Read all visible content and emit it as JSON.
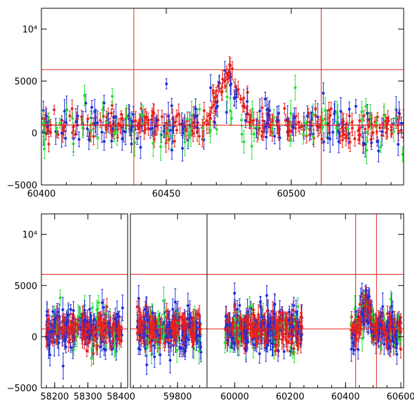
{
  "colors": {
    "red": "#e8201c",
    "blue": "#1f2fd8",
    "green": "#22e030",
    "frame": "#000000"
  },
  "chart_data": [
    {
      "type": "scatter",
      "panel": "top",
      "xlim": [
        60400,
        60545
      ],
      "ylim": [
        -5000,
        12000
      ],
      "x_ticks": [
        60400,
        60450,
        60500
      ],
      "y_ticks": [
        {
          "value": -5000,
          "label": "−5000"
        },
        {
          "value": 0,
          "label": "0"
        },
        {
          "value": 5000,
          "label": "5000"
        },
        {
          "value": 10000,
          "label": "10⁴"
        }
      ],
      "hlines": [
        6100,
        750
      ],
      "vlines": [
        60437,
        60512
      ],
      "model_curve": {
        "center": 60475,
        "peak": 6000,
        "baseline": 750,
        "width": 10
      },
      "series": [
        {
          "color": "red",
          "count": 320,
          "noise": 1100,
          "follows_model": true,
          "error": 650
        },
        {
          "color": "blue",
          "count": 150,
          "noise": 1900,
          "follows_model": true,
          "error": 900
        },
        {
          "color": "green",
          "count": 80,
          "noise": 2200,
          "follows_model": false,
          "error": 900
        }
      ]
    },
    {
      "type": "scatter",
      "panel": "bottom",
      "ylim": [
        -5000,
        12000
      ],
      "segments": [
        {
          "xlim": [
            58160,
            58420
          ],
          "x_ticks": [
            58200,
            58300,
            58400
          ],
          "data_range": [
            58175,
            58405
          ]
        },
        {
          "xlim": [
            59640,
            59900
          ],
          "x_ticks": [
            59800
          ],
          "data_range": [
            59660,
            59880
          ]
        },
        {
          "xlim": [
            59900,
            60610
          ],
          "x_ticks": [
            60000,
            60200,
            60400,
            60600
          ],
          "data_ranges": [
            [
              59965,
              60245
            ],
            [
              60420,
              60600
            ]
          ]
        }
      ],
      "y_ticks": [
        {
          "value": -5000,
          "label": "−5000"
        },
        {
          "value": 0,
          "label": "0"
        },
        {
          "value": 5000,
          "label": "5000"
        },
        {
          "value": 10000,
          "label": "10⁴"
        }
      ],
      "hlines": [
        6100,
        750
      ],
      "vlines": [
        60437,
        60512
      ],
      "series": [
        {
          "color": "red",
          "noise": 1300,
          "error": 700
        },
        {
          "color": "blue",
          "noise": 2000,
          "error": 900
        },
        {
          "color": "green",
          "noise": 2300,
          "error": 900
        }
      ]
    }
  ]
}
